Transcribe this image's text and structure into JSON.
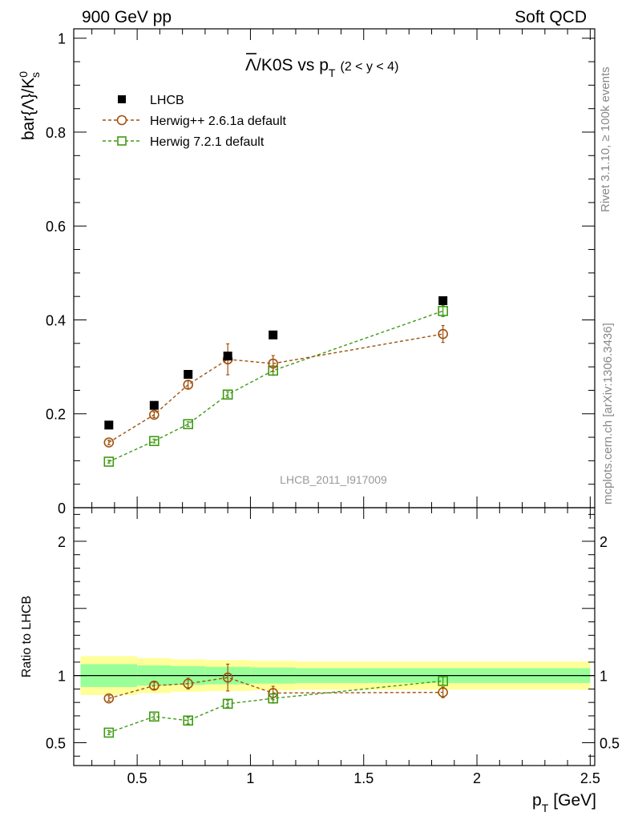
{
  "header": {
    "left": "900 GeV pp",
    "right": "Soft QCD"
  },
  "side_text": {
    "rivet": "Rivet 3.1.10, ≥ 100k events",
    "mcplots": "mcplots.cern.ch [arXiv:1306.3436]"
  },
  "watermark": "LHCB_2011_I917009",
  "plot_title": {
    "main": "Λ/K0S vs p",
    "main_bar": "Λ",
    "main_rest": "/K0S vs p",
    "sub_T": "T",
    "range": "(2 < y < 4)"
  },
  "colors": {
    "data": "#000000",
    "herwig_pp": "#a0520d",
    "herwig7": "#3f9a14",
    "band_inner": "#99ff99",
    "band_outer": "#ffff99"
  },
  "chart_data": [
    {
      "type": "scatter",
      "panel": "main",
      "ylabel": "bar{Λ}/K",
      "ylabel_sup": "0",
      "ylabel_sub": "s",
      "xlim": [
        0.22,
        2.52
      ],
      "ylim": [
        0,
        1.02
      ],
      "y_ticks": [
        0,
        0.2,
        0.4,
        0.6,
        0.8,
        1
      ],
      "y_tick_labels": [
        "0",
        "0.2",
        "0.4",
        "0.6",
        "0.8",
        "1"
      ],
      "legend_placement": "top-left",
      "series": [
        {
          "name": "LHCB",
          "marker": "square-filled",
          "x": [
            0.375,
            0.575,
            0.725,
            0.9,
            1.1,
            1.85
          ],
          "y": [
            0.176,
            0.218,
            0.284,
            0.323,
            0.368,
            0.441
          ],
          "err": [
            0.004,
            0.004,
            0.005,
            0.005,
            0.006,
            0.006
          ]
        },
        {
          "name": "Herwig++ 2.6.1a default",
          "marker": "circle-open",
          "x": [
            0.375,
            0.575,
            0.725,
            0.9,
            1.1,
            1.85
          ],
          "y": [
            0.139,
            0.198,
            0.262,
            0.316,
            0.307,
            0.37
          ],
          "err": [
            0.005,
            0.006,
            0.008,
            0.033,
            0.017,
            0.018
          ]
        },
        {
          "name": "Herwig 7.2.1 default",
          "marker": "square-open",
          "x": [
            0.375,
            0.575,
            0.725,
            0.9,
            1.1,
            1.85
          ],
          "y": [
            0.098,
            0.142,
            0.178,
            0.241,
            0.292,
            0.419
          ],
          "err": [
            0.003,
            0.004,
            0.005,
            0.006,
            0.01,
            0.012
          ]
        }
      ]
    },
    {
      "type": "scatter",
      "panel": "ratio",
      "ylabel": "Ratio to LHCB",
      "xlabel": "p",
      "xlabel_sub": "T",
      "xlabel_unit": "[GeV]",
      "xlim": [
        0.22,
        2.52
      ],
      "ylim": [
        0.33,
        2.25
      ],
      "x_ticks": [
        0.5,
        1,
        1.5,
        2,
        2.5
      ],
      "x_tick_labels": [
        "0.5",
        "1",
        "1.5",
        "2",
        "2.5"
      ],
      "y_ticks": [
        0.5,
        1,
        2
      ],
      "y_tick_labels": [
        "0.5",
        "1",
        "2"
      ],
      "bands": {
        "x_edges": [
          0.25,
          0.5,
          0.65,
          0.8,
          1.0,
          1.2,
          2.5
        ],
        "inner_half_width": [
          0.085,
          0.075,
          0.07,
          0.065,
          0.06,
          0.055
        ],
        "outer_half_width": [
          0.145,
          0.13,
          0.12,
          0.115,
          0.11,
          0.105
        ]
      },
      "series": [
        {
          "name": "Herwig++ 2.6.1a default",
          "marker": "circle-open",
          "x": [
            0.375,
            0.575,
            0.725,
            0.9,
            1.1,
            1.85
          ],
          "y": [
            0.83,
            0.925,
            0.94,
            0.985,
            0.87,
            0.875
          ],
          "err": [
            0.02,
            0.025,
            0.04,
            0.1,
            0.05,
            0.04
          ]
        },
        {
          "name": "Herwig 7.2.1 default",
          "marker": "square-open",
          "x": [
            0.375,
            0.575,
            0.725,
            0.9,
            1.1,
            1.85
          ],
          "y": [
            0.575,
            0.695,
            0.665,
            0.79,
            0.83,
            0.96
          ],
          "err": [
            0.015,
            0.02,
            0.025,
            0.025,
            0.035,
            0.03
          ]
        }
      ]
    }
  ]
}
